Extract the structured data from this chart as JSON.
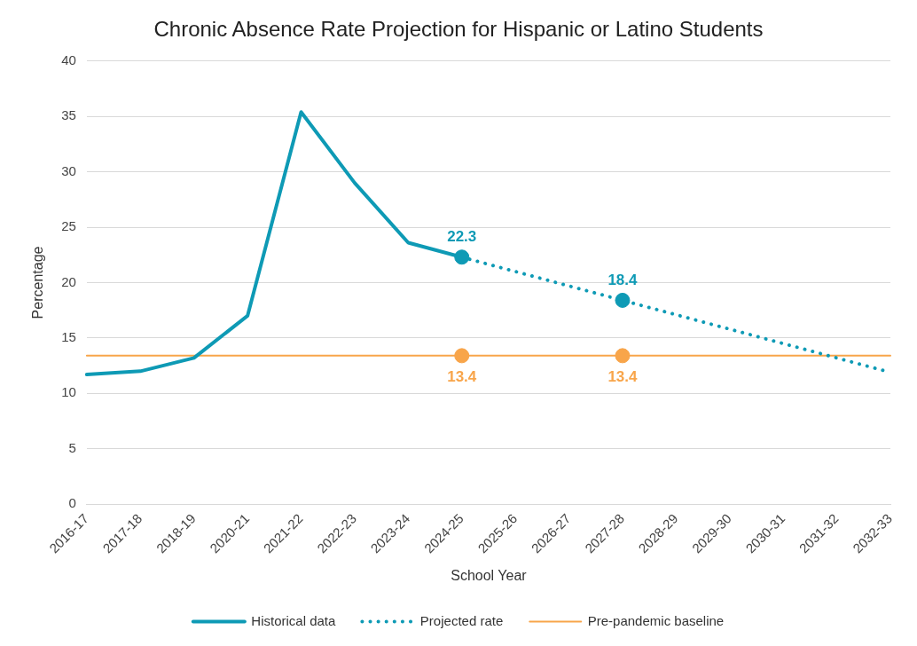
{
  "chart_data": {
    "type": "line",
    "title": "Chronic Absence Rate Projection for Hispanic or Latino Students",
    "xlabel": "School Year",
    "ylabel": "Percentage",
    "categories": [
      "2016-17",
      "2017-18",
      "2018-19",
      "2020-21",
      "2021-22",
      "2022-23",
      "2023-24",
      "2024-25",
      "2025-26",
      "2026-27",
      "2027-28",
      "2028-29",
      "2029-30",
      "2030-31",
      "2031-32",
      "2032-33"
    ],
    "series": [
      {
        "name": "Historical data",
        "color": "#0e9ab5",
        "line_style": "solid",
        "values": [
          11.7,
          12.0,
          13.2,
          17.0,
          35.4,
          29.0,
          23.6,
          22.3,
          null,
          null,
          null,
          null,
          null,
          null,
          null,
          null
        ]
      },
      {
        "name": "Projected rate",
        "color": "#0e9ab5",
        "line_style": "dotted",
        "values": [
          null,
          null,
          null,
          null,
          null,
          null,
          null,
          22.3,
          21.0,
          19.7,
          18.4,
          17.1,
          15.8,
          14.5,
          13.2,
          11.9
        ]
      },
      {
        "name": "Pre-pandemic baseline",
        "color": "#f8a54a",
        "line_style": "solid",
        "values": [
          13.4,
          13.4,
          13.4,
          13.4,
          13.4,
          13.4,
          13.4,
          13.4,
          13.4,
          13.4,
          13.4,
          13.4,
          13.4,
          13.4,
          13.4,
          13.4
        ]
      },
      {
        "type": "scatter",
        "color": "#0e9ab5",
        "marker": "circle",
        "x": [
          "2024-25",
          "2027-28"
        ],
        "values": [
          22.3,
          18.4
        ],
        "value_labels": [
          "22.3",
          "18.4"
        ]
      },
      {
        "type": "scatter",
        "color": "#f8a54a",
        "marker": "circle",
        "x": [
          "2024-25",
          "2027-28"
        ],
        "values": [
          13.4,
          13.4
        ],
        "value_labels": [
          "13.4",
          "13.4"
        ]
      }
    ],
    "ylim": [
      0,
      40
    ],
    "yticks": [
      0,
      5,
      10,
      15,
      20,
      25,
      30,
      35,
      40
    ],
    "grid": "y",
    "legend": "bottom",
    "marker": "none"
  }
}
